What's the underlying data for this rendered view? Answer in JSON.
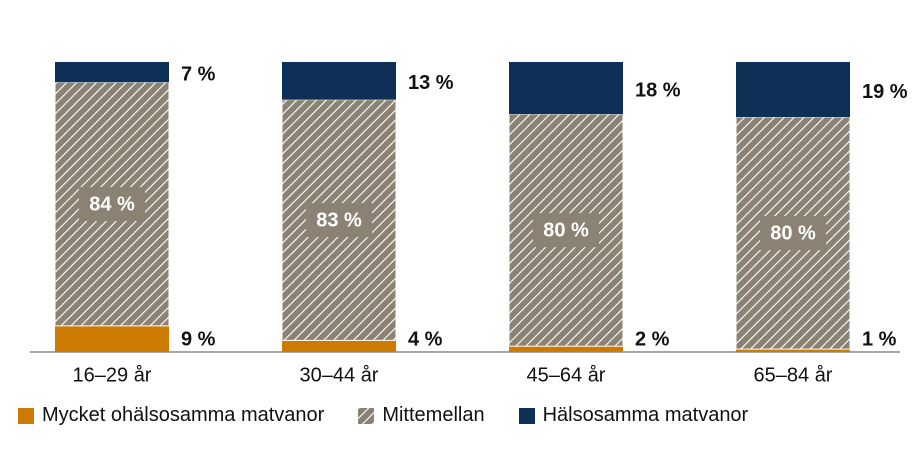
{
  "chart_data": {
    "type": "bar",
    "stacked": true,
    "categories": [
      "16–29 år",
      "30–44 år",
      "45–64 år",
      "65–84 år"
    ],
    "series": [
      {
        "name": "Mycket ohälsosamma matvanor",
        "values": [
          9,
          4,
          2,
          1
        ],
        "labels": [
          "9 %",
          "4 %",
          "2 %",
          "1 %"
        ],
        "color": "#cc7a00",
        "pattern": "solid"
      },
      {
        "name": "Mittemellan",
        "values": [
          84,
          83,
          80,
          80
        ],
        "labels": [
          "84 %",
          "83 %",
          "80 %",
          "80 %"
        ],
        "color": "#8c8274",
        "pattern": "diagonal-hatch"
      },
      {
        "name": "Hälsosamma matvanor",
        "values": [
          7,
          13,
          18,
          19
        ],
        "labels": [
          "7 %",
          "13 %",
          "18 %",
          "19 %"
        ],
        "color": "#0e2f56",
        "pattern": "solid"
      }
    ],
    "ylim": [
      0,
      100
    ],
    "grid": false,
    "legend_position": "bottom"
  }
}
